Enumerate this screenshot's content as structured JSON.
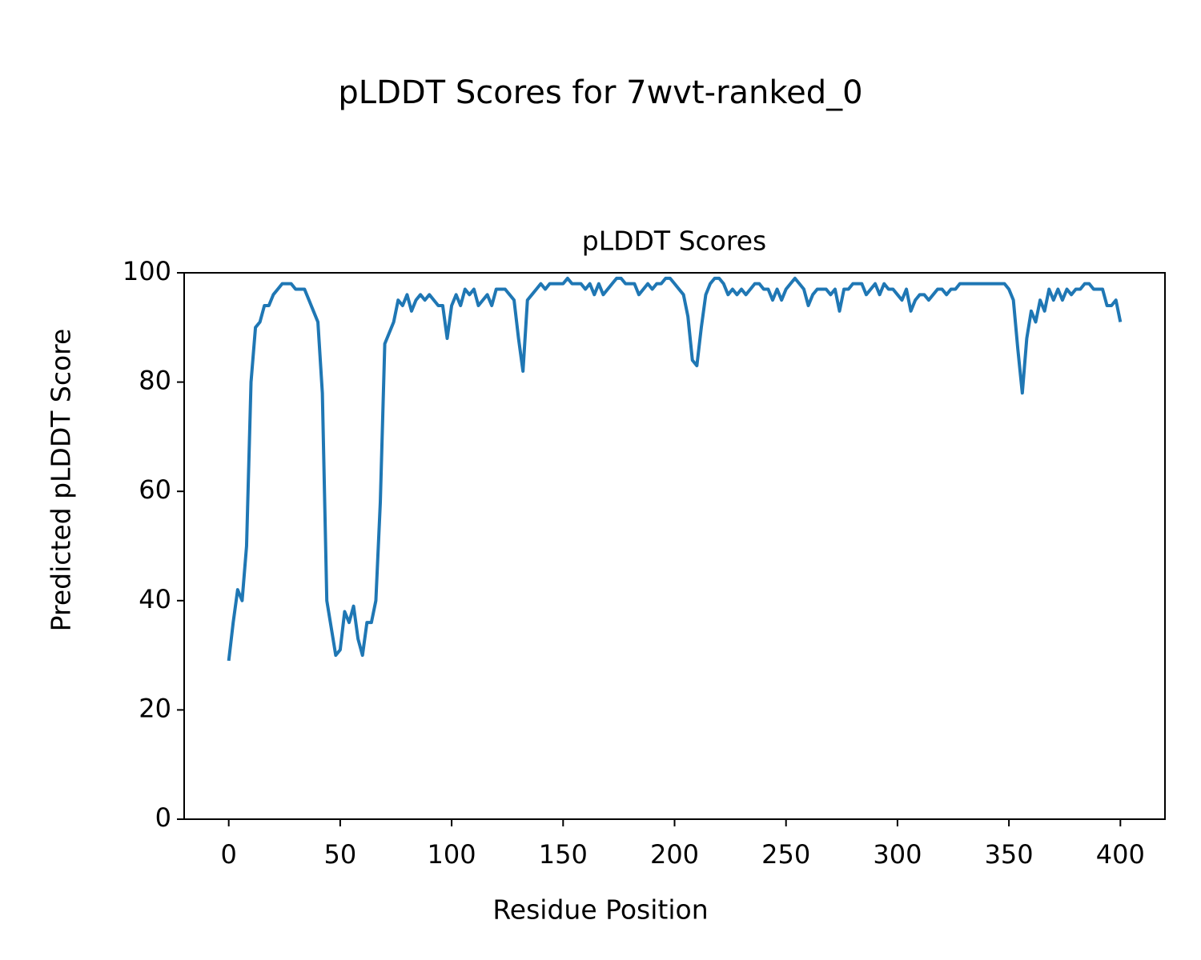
{
  "chart_data": {
    "type": "line",
    "title": "pLDDT Scores for 7wvt-ranked_0",
    "subtitle": "pLDDT Scores",
    "x_label": "Residue Position",
    "y_label": "Predicted pLDDT Score",
    "xlim": [
      -20,
      420
    ],
    "xticks": [
      0,
      50,
      100,
      150,
      200,
      250,
      300,
      350,
      400
    ],
    "ylim": [
      0,
      100
    ],
    "yticks": [
      0,
      20,
      40,
      60,
      80,
      100
    ],
    "grid": false,
    "x": [
      0,
      2,
      4,
      6,
      8,
      10,
      12,
      14,
      16,
      18,
      20,
      22,
      24,
      26,
      28,
      30,
      32,
      34,
      36,
      38,
      40,
      42,
      44,
      46,
      48,
      50,
      52,
      54,
      56,
      58,
      60,
      62,
      64,
      66,
      68,
      70,
      72,
      74,
      76,
      78,
      80,
      82,
      84,
      86,
      88,
      90,
      92,
      94,
      96,
      98,
      100,
      102,
      104,
      106,
      108,
      110,
      112,
      114,
      116,
      118,
      120,
      122,
      124,
      126,
      128,
      130,
      132,
      134,
      136,
      138,
      140,
      142,
      144,
      146,
      148,
      150,
      152,
      154,
      156,
      158,
      160,
      162,
      164,
      166,
      168,
      170,
      172,
      174,
      176,
      178,
      180,
      182,
      184,
      186,
      188,
      190,
      192,
      194,
      196,
      198,
      200,
      202,
      204,
      206,
      208,
      210,
      212,
      214,
      216,
      218,
      220,
      222,
      224,
      226,
      228,
      230,
      232,
      234,
      236,
      238,
      240,
      242,
      244,
      246,
      248,
      250,
      252,
      254,
      256,
      258,
      260,
      262,
      264,
      266,
      268,
      270,
      272,
      274,
      276,
      278,
      280,
      282,
      284,
      286,
      288,
      290,
      292,
      294,
      296,
      298,
      300,
      302,
      304,
      306,
      308,
      310,
      312,
      314,
      316,
      318,
      320,
      322,
      324,
      326,
      328,
      330,
      332,
      334,
      336,
      338,
      340,
      342,
      344,
      346,
      348,
      350,
      352,
      354,
      356,
      358,
      360,
      362,
      364,
      366,
      368,
      370,
      372,
      374,
      376,
      378,
      380,
      382,
      384,
      386,
      388,
      390,
      392,
      394,
      396,
      398,
      400
    ],
    "series": [
      {
        "color": "#1f77b4",
        "values": [
          29,
          36,
          42,
          40,
          50,
          80,
          90,
          91,
          94,
          94,
          96,
          97,
          98,
          98,
          98,
          97,
          97,
          97,
          95,
          93,
          91,
          78,
          40,
          35,
          30,
          31,
          38,
          36,
          39,
          33,
          30,
          36,
          36,
          40,
          58,
          87,
          89,
          91,
          95,
          94,
          96,
          93,
          95,
          96,
          95,
          96,
          95,
          94,
          94,
          88,
          94,
          96,
          94,
          97,
          96,
          97,
          94,
          95,
          96,
          94,
          97,
          97,
          97,
          96,
          95,
          88,
          82,
          95,
          96,
          97,
          98,
          97,
          98,
          98,
          98,
          98,
          99,
          98,
          98,
          98,
          97,
          98,
          96,
          98,
          96,
          97,
          98,
          99,
          99,
          98,
          98,
          98,
          96,
          97,
          98,
          97,
          98,
          98,
          99,
          99,
          98,
          97,
          96,
          92,
          84,
          83,
          90,
          96,
          98,
          99,
          99,
          98,
          96,
          97,
          96,
          97,
          96,
          97,
          98,
          98,
          97,
          97,
          95,
          97,
          95,
          97,
          98,
          99,
          98,
          97,
          94,
          96,
          97,
          97,
          97,
          96,
          97,
          93,
          97,
          97,
          98,
          98,
          98,
          96,
          97,
          98,
          96,
          98,
          97,
          97,
          96,
          95,
          97,
          93,
          95,
          96,
          96,
          95,
          96,
          97,
          97,
          96,
          97,
          97,
          98,
          98,
          98,
          98,
          98,
          98,
          98,
          98,
          98,
          98,
          98,
          97,
          95,
          86,
          78,
          88,
          93,
          91,
          95,
          93,
          97,
          95,
          97,
          95,
          97,
          96,
          97,
          97,
          98,
          98,
          97,
          97,
          97,
          94,
          94,
          95,
          91
        ]
      }
    ]
  }
}
